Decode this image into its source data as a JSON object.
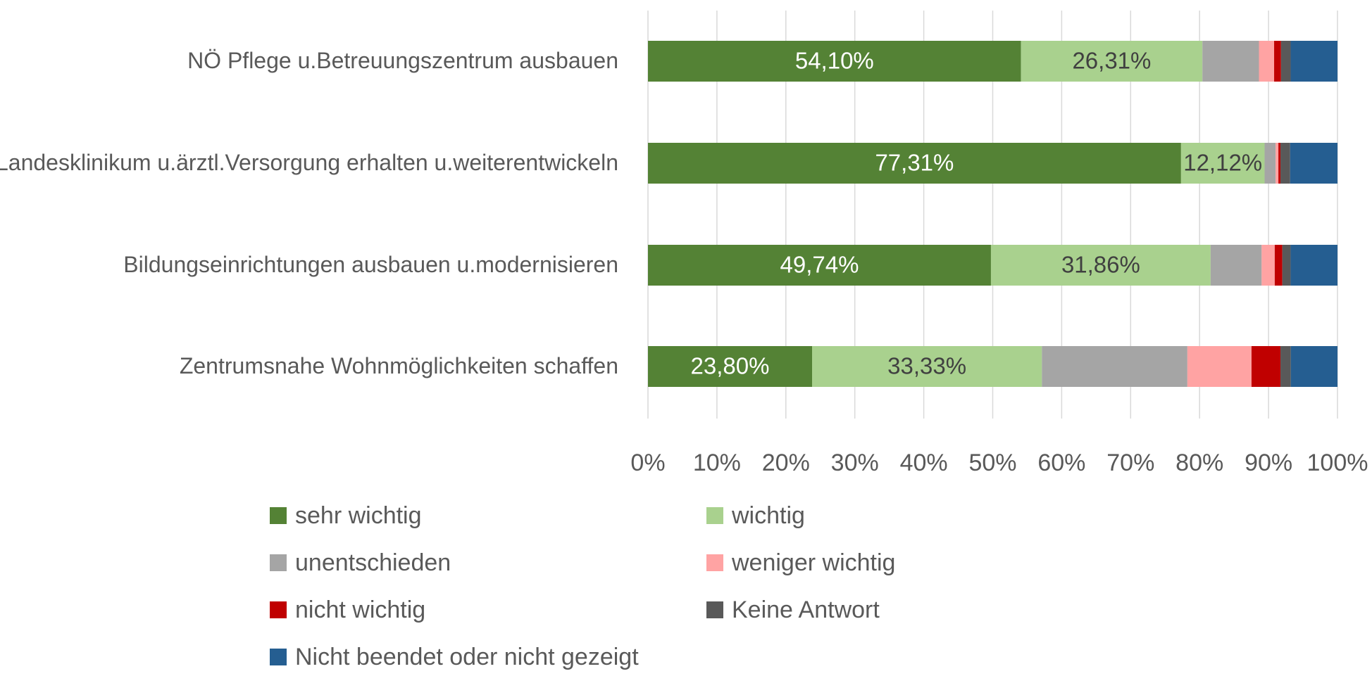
{
  "chart_data": {
    "type": "stacked_bar_horizontal",
    "categories": [
      "NÖ Pflege u.Betreuungszentrum ausbauen",
      "Landesklinikum u.ärztl.Versorgung erhalten u.weiterentwickeln",
      "Bildungseinrichtungen ausbauen u.modernisieren",
      "Zentrumsnahe Wohnmöglichkeiten schaffen"
    ],
    "series": [
      {
        "name": "sehr wichtig",
        "color": "#548235",
        "label_color": "#ffffff",
        "values": [
          54.1,
          77.31,
          49.74,
          23.8
        ],
        "value_labels": [
          "54,10%",
          "77,31%",
          "49,74%",
          "23,80%"
        ]
      },
      {
        "name": "wichtig",
        "color": "#a9d18e",
        "label_color": "#404040",
        "values": [
          26.31,
          12.12,
          31.86,
          33.33
        ],
        "value_labels": [
          "26,31%",
          "12,12%",
          "31,86%",
          "33,33%"
        ]
      },
      {
        "name": "unentschieden",
        "color": "#a5a5a5",
        "values": [
          8.2,
          1.6,
          7.4,
          21.1
        ]
      },
      {
        "name": "weniger wichtig",
        "color": "#ffa3a3",
        "values": [
          2.2,
          0.4,
          1.9,
          9.3
        ]
      },
      {
        "name": "nicht wichtig",
        "color": "#c00000",
        "values": [
          1.0,
          0.3,
          1.1,
          4.2
        ]
      },
      {
        "name": "Keine Antwort",
        "color": "#595959",
        "values": [
          1.4,
          1.4,
          1.2,
          1.5
        ]
      },
      {
        "name": "Nicht beendet oder nicht gezeigt",
        "color": "#255e91",
        "values": [
          6.79,
          6.87,
          6.8,
          6.77
        ]
      }
    ],
    "xlim": [
      0,
      100
    ],
    "xticks": [
      {
        "value": 0,
        "label": "0%"
      },
      {
        "value": 10,
        "label": "10%"
      },
      {
        "value": 20,
        "label": "20%"
      },
      {
        "value": 30,
        "label": "30%"
      },
      {
        "value": 40,
        "label": "40%"
      },
      {
        "value": 50,
        "label": "50%"
      },
      {
        "value": 60,
        "label": "60%"
      },
      {
        "value": 70,
        "label": "70%"
      },
      {
        "value": 80,
        "label": "80%"
      },
      {
        "value": 90,
        "label": "90%"
      },
      {
        "value": 100,
        "label": "100%"
      }
    ],
    "grid": true,
    "legend": "bottom"
  }
}
